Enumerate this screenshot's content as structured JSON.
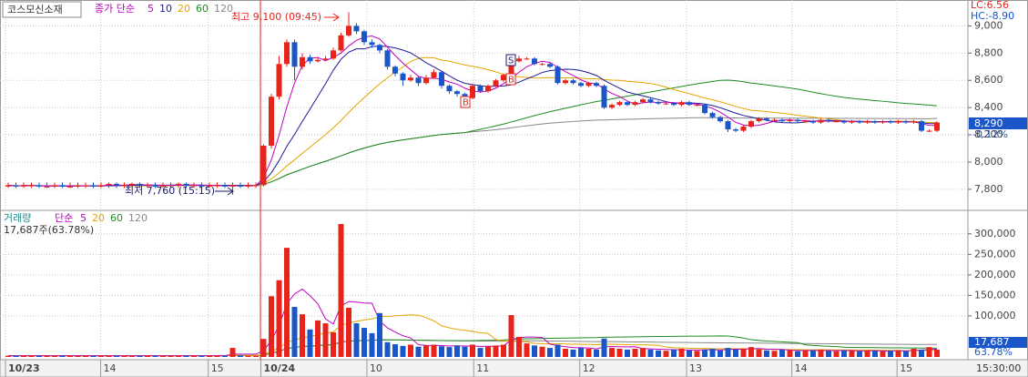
{
  "chart_data": {
    "type": "candlestick",
    "title": "코스모신소재",
    "price_ma_label": "종가 단순",
    "ma_periods": [
      5,
      10,
      20,
      60,
      120
    ],
    "ma_colors": [
      "#c000c0",
      "#1a1a9a",
      "#e6a400",
      "#1e8c1e",
      "#888888"
    ],
    "up_color": "#e8231c",
    "down_color": "#1a56c8",
    "open": [
      7820,
      7830,
      7820,
      7830,
      7830,
      7820,
      7820,
      7830,
      7820,
      7820,
      7830,
      7830,
      7820,
      7830,
      7840,
      7830,
      7830,
      7840,
      7830,
      7830,
      7820,
      7830,
      7830,
      7840,
      7830,
      7830,
      7820,
      7830,
      7830,
      7820,
      7830,
      7820,
      7830,
      7830,
      8120,
      8480,
      8720,
      8880,
      8700,
      8770,
      8740,
      8750,
      8760,
      8820,
      8930,
      9000,
      8960,
      8880,
      8860,
      8820,
      8700,
      8650,
      8600,
      8620,
      8580,
      8620,
      8660,
      8560,
      8520,
      8500,
      8470,
      8560,
      8520,
      8560,
      8600,
      8640,
      8740,
      8760,
      8760,
      8720,
      8720,
      8700,
      8580,
      8600,
      8580,
      8560,
      8580,
      8560,
      8400,
      8420,
      8440,
      8420,
      8440,
      8460,
      8440,
      8430,
      8430,
      8420,
      8440,
      8420,
      8420,
      8360,
      8330,
      8300,
      8240,
      8230,
      8260,
      8300,
      8320,
      8310,
      8310,
      8300,
      8310,
      8300,
      8300,
      8290,
      8310,
      8300,
      8300,
      8290,
      8300,
      8290,
      8300,
      8290,
      8300,
      8290,
      8300,
      8290,
      8300,
      8230,
      8230
    ],
    "high": [
      7850,
      7850,
      7850,
      7850,
      7850,
      7850,
      7850,
      7850,
      7850,
      7850,
      7850,
      7850,
      7850,
      7850,
      7850,
      7850,
      7850,
      7850,
      7850,
      7850,
      7850,
      7850,
      7850,
      7850,
      7850,
      7850,
      7850,
      7850,
      7850,
      7850,
      7850,
      7850,
      7850,
      8130,
      8500,
      8780,
      8900,
      8900,
      8800,
      8790,
      8770,
      8780,
      8840,
      8950,
      9100,
      9020,
      8970,
      8900,
      8870,
      8830,
      8710,
      8660,
      8640,
      8630,
      8640,
      8680,
      8670,
      8570,
      8530,
      8510,
      8570,
      8570,
      8570,
      8610,
      8650,
      8750,
      8780,
      8770,
      8770,
      8730,
      8730,
      8710,
      8610,
      8610,
      8590,
      8590,
      8590,
      8570,
      8430,
      8450,
      8450,
      8450,
      8470,
      8470,
      8450,
      8440,
      8440,
      8450,
      8450,
      8430,
      8430,
      8370,
      8340,
      8310,
      8250,
      8270,
      8310,
      8330,
      8330,
      8320,
      8320,
      8320,
      8320,
      8310,
      8310,
      8320,
      8320,
      8310,
      8310,
      8310,
      8310,
      8310,
      8310,
      8310,
      8310,
      8310,
      8310,
      8310,
      8310,
      8240,
      8300
    ],
    "low": [
      7810,
      7810,
      7810,
      7810,
      7810,
      7810,
      7810,
      7810,
      7810,
      7810,
      7810,
      7810,
      7810,
      7810,
      7810,
      7810,
      7810,
      7810,
      7810,
      7810,
      7810,
      7810,
      7810,
      7810,
      7810,
      7810,
      7810,
      7810,
      7810,
      7760,
      7810,
      7810,
      7810,
      7820,
      8100,
      8460,
      8700,
      8600,
      8680,
      8720,
      8730,
      8740,
      8750,
      8810,
      8920,
      8940,
      8860,
      8840,
      8800,
      8680,
      8630,
      8560,
      8590,
      8560,
      8570,
      8610,
      8540,
      8500,
      8480,
      8460,
      8460,
      8510,
      8510,
      8550,
      8590,
      8630,
      8730,
      8750,
      8710,
      8710,
      8690,
      8570,
      8570,
      8570,
      8550,
      8550,
      8550,
      8390,
      8390,
      8410,
      8410,
      8410,
      8430,
      8430,
      8420,
      8420,
      8410,
      8410,
      8410,
      8410,
      8350,
      8320,
      8290,
      8220,
      8220,
      8220,
      8250,
      8290,
      8300,
      8300,
      8290,
      8290,
      8290,
      8290,
      8280,
      8280,
      8290,
      8290,
      8280,
      8280,
      8280,
      8280,
      8280,
      8280,
      8280,
      8280,
      8280,
      8280,
      8220,
      8220,
      8220
    ],
    "close": [
      7830,
      7820,
      7830,
      7830,
      7820,
      7820,
      7830,
      7820,
      7820,
      7830,
      7830,
      7820,
      7830,
      7840,
      7830,
      7830,
      7840,
      7830,
      7830,
      7820,
      7830,
      7830,
      7840,
      7830,
      7830,
      7820,
      7830,
      7830,
      7820,
      7830,
      7820,
      7830,
      7830,
      8120,
      8480,
      8720,
      8880,
      8700,
      8770,
      8740,
      8750,
      8760,
      8820,
      8930,
      9000,
      8960,
      8880,
      8860,
      8820,
      8700,
      8650,
      8600,
      8620,
      8580,
      8620,
      8660,
      8560,
      8520,
      8500,
      8470,
      8560,
      8520,
      8560,
      8600,
      8640,
      8740,
      8760,
      8760,
      8720,
      8720,
      8700,
      8580,
      8600,
      8580,
      8560,
      8580,
      8560,
      8400,
      8420,
      8440,
      8420,
      8440,
      8460,
      8440,
      8430,
      8430,
      8420,
      8440,
      8420,
      8420,
      8360,
      8330,
      8300,
      8240,
      8230,
      8260,
      8300,
      8320,
      8310,
      8310,
      8300,
      8310,
      8300,
      8300,
      8290,
      8310,
      8300,
      8300,
      8290,
      8300,
      8290,
      8300,
      8290,
      8300,
      8290,
      8300,
      8290,
      8300,
      8230,
      8230,
      8290
    ],
    "ylim": [
      7652,
      9190
    ],
    "yticks": [
      {
        "value": 7800,
        "label": "7,800"
      },
      {
        "value": 8000,
        "label": "8,000"
      },
      {
        "value": 8200,
        "label": "8,200"
      },
      {
        "value": 8400,
        "label": "8,400"
      },
      {
        "value": 8600,
        "label": "8,600"
      },
      {
        "value": 8800,
        "label": "8,800"
      },
      {
        "value": 9000,
        "label": "9,000"
      }
    ],
    "xticks": [
      {
        "value": 0,
        "label": "10/23"
      },
      {
        "value": 12.3,
        "label": "14"
      },
      {
        "value": 26.2,
        "label": "15"
      },
      {
        "value": 33,
        "label": "10/24"
      },
      {
        "value": 46.7,
        "label": "10"
      },
      {
        "value": 60.5,
        "label": "11"
      },
      {
        "value": 74.2,
        "label": "12"
      },
      {
        "value": 88,
        "label": "13"
      },
      {
        "value": 101.6,
        "label": "14"
      },
      {
        "value": 115.2,
        "label": "15"
      }
    ],
    "x_end_label": "15:30:00",
    "high_note": "최고 9,100 (09:45)",
    "low_note": "최저 7,760 (15:15)",
    "lc": "LC:6.56",
    "hc": "HC:-8.90",
    "last_price": "8,290",
    "change": "-0.12%",
    "signals": [
      "S",
      "B",
      "B"
    ],
    "volume": {
      "label": "거래량",
      "ma_label": "단순",
      "ma_periods": [
        5,
        20,
        60,
        120
      ],
      "ma_colors": [
        "#c000c0",
        "#e6a400",
        "#1e8c1e",
        "#888888"
      ],
      "info": "17,687주(63.78%)",
      "badge": "17,687",
      "ratio": "63.78%",
      "values": [
        3000,
        3000,
        3000,
        3000,
        3000,
        3000,
        3000,
        3000,
        3000,
        3000,
        3000,
        3000,
        3000,
        3000,
        3000,
        3000,
        3000,
        3000,
        3000,
        3000,
        3000,
        3000,
        3000,
        3000,
        3000,
        3000,
        3000,
        3000,
        3000,
        22000,
        4000,
        3000,
        3000,
        44000,
        148000,
        187000,
        266000,
        122000,
        104000,
        67000,
        89000,
        82000,
        60000,
        324000,
        120000,
        82000,
        71000,
        58000,
        107000,
        36000,
        31000,
        27000,
        30000,
        25000,
        28000,
        30000,
        26000,
        24000,
        28000,
        25000,
        30000,
        22000,
        26000,
        28000,
        30000,
        102000,
        49000,
        33000,
        28000,
        25000,
        22000,
        30000,
        20000,
        18000,
        22000,
        20000,
        18000,
        45000,
        22000,
        20000,
        18000,
        20000,
        22000,
        18000,
        16000,
        15000,
        18000,
        20000,
        16000,
        15000,
        18000,
        20000,
        16000,
        22000,
        18000,
        20000,
        24000,
        18000,
        16000,
        15000,
        18000,
        16000,
        14000,
        15000,
        16000,
        18000,
        15000,
        14000,
        16000,
        15000,
        14000,
        16000,
        15000,
        14000,
        15000,
        16000,
        14000,
        20000,
        18000,
        24000,
        17687
      ],
      "ylim": [
        0,
        355000
      ],
      "yticks": [
        {
          "value": 100000,
          "label": "100,000"
        },
        {
          "value": 150000,
          "label": "150,000"
        },
        {
          "value": 200000,
          "label": "200,000"
        },
        {
          "value": 250000,
          "label": "250,000"
        },
        {
          "value": 300000,
          "label": "300,000"
        }
      ]
    }
  }
}
